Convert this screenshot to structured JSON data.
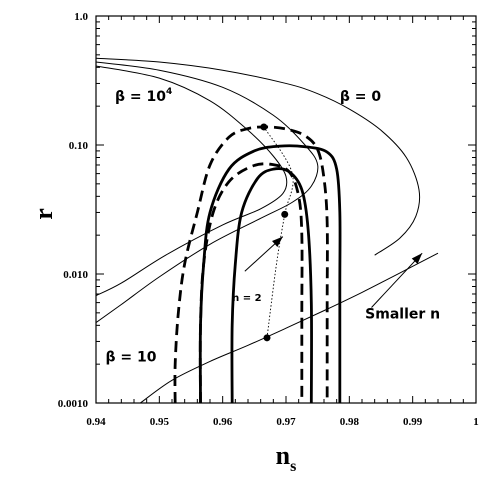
{
  "chart_data": {
    "type": "line",
    "title": "",
    "xlabel": "n",
    "xlabel_sub": "s",
    "ylabel": "r",
    "xlim": [
      0.94,
      1.0
    ],
    "ylim": [
      0.001,
      1.0
    ],
    "yscale": "log",
    "grid": false,
    "x_ticks": [
      {
        "value": 0.94,
        "label": "0.94"
      },
      {
        "value": 0.95,
        "label": "0.95"
      },
      {
        "value": 0.96,
        "label": "0.96"
      },
      {
        "value": 0.97,
        "label": "0.97"
      },
      {
        "value": 0.98,
        "label": "0.98"
      },
      {
        "value": 0.99,
        "label": "0.99"
      },
      {
        "value": 1.0,
        "label": "1"
      }
    ],
    "y_ticks": [
      {
        "value": 0.001,
        "label": "0.0010"
      },
      {
        "value": 0.01,
        "label": "0.010"
      },
      {
        "value": 0.1,
        "label": "0.10"
      },
      {
        "value": 1.0,
        "label": "1.0"
      }
    ],
    "series": [
      {
        "style": "thin",
        "points": [
          [
            0.94,
            0.47
          ],
          [
            0.95,
            0.44
          ],
          [
            0.96,
            0.38
          ],
          [
            0.97,
            0.3
          ],
          [
            0.975,
            0.25
          ],
          [
            0.98,
            0.19
          ],
          [
            0.985,
            0.13
          ],
          [
            0.989,
            0.08
          ],
          [
            0.991,
            0.045
          ],
          [
            0.9905,
            0.028
          ],
          [
            0.988,
            0.019
          ],
          [
            0.984,
            0.014
          ]
        ]
      },
      {
        "style": "thin",
        "points": [
          [
            0.94,
            0.44
          ],
          [
            0.95,
            0.38
          ],
          [
            0.96,
            0.28
          ],
          [
            0.968,
            0.17
          ],
          [
            0.973,
            0.1
          ],
          [
            0.975,
            0.07
          ],
          [
            0.974,
            0.048
          ],
          [
            0.971,
            0.036
          ],
          [
            0.966,
            0.027
          ],
          [
            0.958,
            0.017
          ],
          [
            0.95,
            0.0095
          ],
          [
            0.944,
            0.0058
          ],
          [
            0.94,
            0.0042
          ]
        ]
      },
      {
        "style": "thin",
        "points": [
          [
            0.94,
            0.41
          ],
          [
            0.95,
            0.33
          ],
          [
            0.958,
            0.22
          ],
          [
            0.964,
            0.13
          ],
          [
            0.968,
            0.082
          ],
          [
            0.97,
            0.057
          ],
          [
            0.9695,
            0.042
          ],
          [
            0.966,
            0.032
          ],
          [
            0.96,
            0.024
          ],
          [
            0.951,
            0.014
          ],
          [
            0.944,
            0.0085
          ],
          [
            0.94,
            0.0068
          ]
        ]
      },
      {
        "style": "thin",
        "points": [
          [
            0.947,
            0.001
          ],
          [
            0.952,
            0.0015
          ],
          [
            0.958,
            0.0021
          ],
          [
            0.964,
            0.0028
          ],
          [
            0.97,
            0.0038
          ],
          [
            0.976,
            0.0052
          ],
          [
            0.982,
            0.0072
          ],
          [
            0.988,
            0.0102
          ],
          [
            0.994,
            0.0145
          ]
        ]
      },
      {
        "style": "dashed-thick",
        "points": [
          [
            0.9525,
            0.001
          ],
          [
            0.9525,
            0.002
          ],
          [
            0.953,
            0.005
          ],
          [
            0.954,
            0.012
          ],
          [
            0.956,
            0.03
          ],
          [
            0.958,
            0.07
          ],
          [
            0.961,
            0.115
          ],
          [
            0.964,
            0.134
          ],
          [
            0.967,
            0.138
          ],
          [
            0.97,
            0.133
          ],
          [
            0.973,
            0.118
          ],
          [
            0.975,
            0.092
          ],
          [
            0.976,
            0.055
          ],
          [
            0.9765,
            0.025
          ],
          [
            0.9765,
            0.006
          ],
          [
            0.9765,
            0.001
          ]
        ]
      },
      {
        "style": "dashed-thick",
        "points": [
          [
            0.9565,
            0.001
          ],
          [
            0.9565,
            0.004
          ],
          [
            0.957,
            0.012
          ],
          [
            0.9585,
            0.03
          ],
          [
            0.961,
            0.052
          ],
          [
            0.9645,
            0.068
          ],
          [
            0.9675,
            0.071
          ],
          [
            0.9705,
            0.062
          ],
          [
            0.972,
            0.04
          ],
          [
            0.9725,
            0.02
          ],
          [
            0.9725,
            0.005
          ],
          [
            0.9725,
            0.001
          ]
        ]
      },
      {
        "style": "solid-thick",
        "points": [
          [
            0.9565,
            0.001
          ],
          [
            0.9565,
            0.004
          ],
          [
            0.957,
            0.012
          ],
          [
            0.958,
            0.03
          ],
          [
            0.961,
            0.065
          ],
          [
            0.965,
            0.09
          ],
          [
            0.969,
            0.098
          ],
          [
            0.973,
            0.097
          ],
          [
            0.9765,
            0.088
          ],
          [
            0.978,
            0.065
          ],
          [
            0.9785,
            0.03
          ],
          [
            0.9785,
            0.008
          ],
          [
            0.9785,
            0.001
          ]
        ]
      },
      {
        "style": "solid-thick",
        "points": [
          [
            0.9615,
            0.001
          ],
          [
            0.9615,
            0.004
          ],
          [
            0.962,
            0.012
          ],
          [
            0.963,
            0.03
          ],
          [
            0.9655,
            0.055
          ],
          [
            0.968,
            0.065
          ],
          [
            0.9705,
            0.062
          ],
          [
            0.9725,
            0.045
          ],
          [
            0.9735,
            0.022
          ],
          [
            0.974,
            0.006
          ],
          [
            0.974,
            0.001
          ]
        ]
      },
      {
        "style": "dotted",
        "points": [
          [
            0.967,
            0.0032
          ],
          [
            0.9685,
            0.012
          ],
          [
            0.9698,
            0.029
          ],
          [
            0.971,
            0.06
          ],
          [
            0.9665,
            0.138
          ]
        ]
      }
    ],
    "markers": [
      [
        0.9665,
        0.138
      ],
      [
        0.9698,
        0.029
      ],
      [
        0.967,
        0.0032
      ]
    ],
    "arrows": [
      {
        "from": [
          0.9635,
          0.0105
        ],
        "to": [
          0.9695,
          0.0195
        ]
      },
      {
        "from": [
          0.9835,
          0.0055
        ],
        "to": [
          0.9915,
          0.0145
        ]
      }
    ],
    "annotations": [
      {
        "text": "β = 10",
        "sup": "4",
        "x": 0.943,
        "y": 0.22
      },
      {
        "text": "β = 0",
        "sup": "",
        "x": 0.9785,
        "y": 0.22
      },
      {
        "text": "β = 10",
        "sup": "",
        "x": 0.9415,
        "y": 0.0021
      },
      {
        "text": "n = 2",
        "sup": "",
        "x": 0.9615,
        "y": 0.0062
      },
      {
        "text": "Smaller n",
        "sup": "",
        "x": 0.9825,
        "y": 0.0045
      }
    ]
  }
}
